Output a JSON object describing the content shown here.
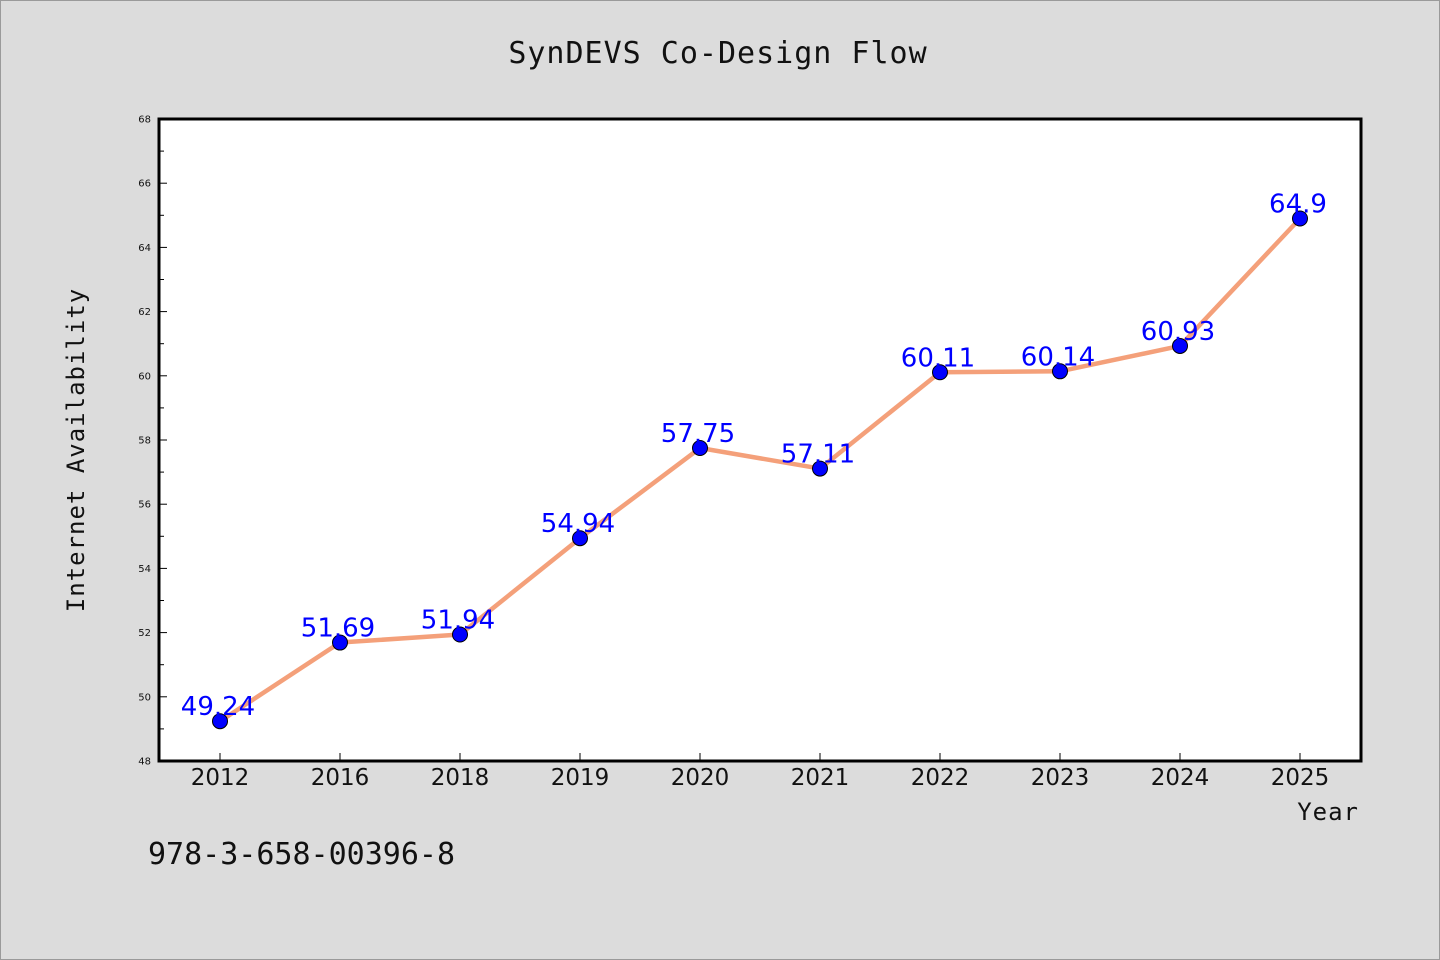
{
  "chart_data": {
    "type": "line",
    "title": "SynDEVS Co-Design Flow",
    "xlabel": "Year",
    "ylabel": "Internet Availability",
    "categories": [
      "2012",
      "2016",
      "2018",
      "2019",
      "2020",
      "2021",
      "2022",
      "2023",
      "2024",
      "2025"
    ],
    "series": [
      {
        "values": [
          49.24,
          51.69,
          51.94,
          54.94,
          57.75,
          57.11,
          60.11,
          60.14,
          60.93,
          64.9
        ],
        "data_labels": [
          "49.24",
          "51.69",
          "51.94",
          "54.94",
          "57.75",
          "57.11",
          "60.11",
          "60.14",
          "60.93",
          "64.9"
        ],
        "line_color": "#f4a07a",
        "marker_color": "#0000ff"
      }
    ],
    "ylim": [
      48,
      68
    ],
    "yticks": [
      "48",
      "50",
      "52",
      "54",
      "56",
      "58",
      "60",
      "62",
      "64",
      "66",
      "68"
    ],
    "grid": false,
    "legend": "none"
  },
  "footer": {
    "code": "978-3-658-00396-8"
  },
  "colors": {
    "background": "#dcdcdc",
    "plot_background": "#ffffff",
    "label_color": "#0000ff"
  }
}
